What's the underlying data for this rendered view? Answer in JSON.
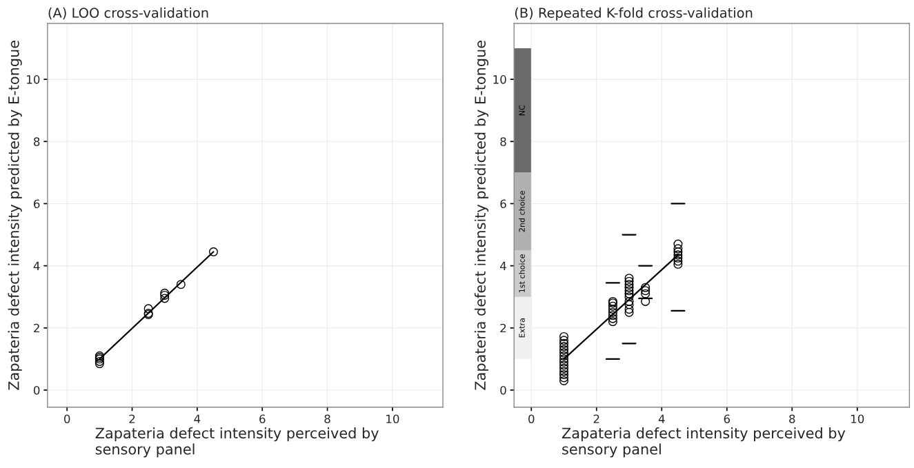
{
  "chart_data": [
    {
      "type": "scatter",
      "title": "(A) LOO cross-validation",
      "xlabel": "Zapateria defect intensity perceived by\nsensory panel",
      "ylabel": "Zapateria defect intensity predicted by E-tongue",
      "xlim": [
        -0.6,
        11.55
      ],
      "ylim": [
        -0.55,
        11.8
      ],
      "xticks": [
        0,
        2,
        4,
        6,
        8,
        10
      ],
      "yticks": [
        0,
        2,
        4,
        6,
        8,
        10
      ],
      "grid": true,
      "series": [
        {
          "marker": "circle",
          "color": "#000000",
          "x": [
            1,
            1,
            1,
            1,
            1,
            2.5,
            2.5,
            2.5,
            3,
            3,
            3,
            3.5,
            4.5
          ],
          "values": [
            0.85,
            0.92,
            1.0,
            1.05,
            1.1,
            2.43,
            2.47,
            2.62,
            2.95,
            3.05,
            3.12,
            3.4,
            4.45
          ]
        },
        {
          "type": "line",
          "color": "#000000",
          "x": [
            1,
            4.5
          ],
          "values": [
            1.0,
            4.45
          ]
        }
      ]
    },
    {
      "type": "scatter",
      "title": "(B) Repeated K-fold cross-validation",
      "xlabel": "Zapateria defect intensity perceived by\nsensory panel",
      "ylabel": "Zapateria defect intensity predicted by E-tongue",
      "xlim": [
        -0.53,
        11.6
      ],
      "ylim": [
        -0.55,
        11.8
      ],
      "xticks": [
        0,
        2,
        4,
        6,
        8,
        10
      ],
      "yticks": [
        0,
        2,
        4,
        6,
        8,
        10
      ],
      "grid": true,
      "bands": [
        {
          "axis": "y",
          "from": 1,
          "to": 3,
          "label": "Extra",
          "color": "#f0f0f0"
        },
        {
          "axis": "y",
          "from": 3,
          "to": 4.5,
          "label": "1st choice",
          "color": "#cccccc"
        },
        {
          "axis": "y",
          "from": 4.5,
          "to": 7,
          "label": "2nd choice",
          "color": "#b0b0b0"
        },
        {
          "axis": "y",
          "from": 7,
          "to": 11,
          "label": "NC",
          "color": "#6b6b6b"
        }
      ],
      "series": [
        {
          "marker": "circle",
          "color": "#000000",
          "x": [
            1,
            1,
            1,
            1,
            1,
            1,
            1,
            1,
            1,
            1,
            1,
            1,
            1,
            1,
            1,
            2.5,
            2.5,
            2.5,
            2.5,
            2.5,
            2.5,
            2.5,
            2.5,
            3,
            3,
            3,
            3,
            3,
            3,
            3,
            3,
            3,
            3,
            3,
            3.5,
            3.5,
            3.5,
            3.5,
            4.5,
            4.5,
            4.5,
            4.5,
            4.5,
            4.5,
            4.5
          ],
          "values": [
            0.3,
            0.4,
            0.5,
            0.6,
            0.7,
            0.8,
            0.9,
            1.0,
            1.1,
            1.2,
            1.3,
            1.4,
            1.5,
            1.6,
            1.72,
            2.2,
            2.3,
            2.4,
            2.5,
            2.6,
            2.7,
            2.8,
            2.85,
            2.5,
            2.6,
            2.75,
            2.85,
            3.0,
            3.1,
            3.2,
            3.3,
            3.4,
            3.5,
            3.6,
            2.85,
            3.1,
            3.2,
            3.3,
            4.05,
            4.15,
            4.25,
            4.35,
            4.45,
            4.55,
            4.7
          ]
        },
        {
          "type": "line",
          "color": "#000000",
          "x": [
            2.3,
            2.7
          ],
          "values": [
            3.45,
            3.45
          ]
        },
        {
          "type": "line",
          "color": "#000000",
          "x": [
            2.3,
            2.7
          ],
          "values": [
            1.0,
            1.0
          ]
        },
        {
          "type": "line",
          "color": "#000000",
          "x": [
            2.8,
            3.2
          ],
          "values": [
            5.0,
            5.0
          ]
        },
        {
          "type": "line",
          "color": "#000000",
          "x": [
            2.8,
            3.2
          ],
          "values": [
            1.5,
            1.5
          ]
        },
        {
          "type": "line",
          "color": "#000000",
          "x": [
            3.3,
            3.7
          ],
          "values": [
            4.0,
            4.0
          ]
        },
        {
          "type": "line",
          "color": "#000000",
          "x": [
            3.3,
            3.7
          ],
          "values": [
            2.95,
            2.95
          ]
        },
        {
          "type": "line",
          "color": "#000000",
          "x": [
            4.3,
            4.7
          ],
          "values": [
            6.0,
            6.0
          ]
        },
        {
          "type": "line",
          "color": "#000000",
          "x": [
            4.3,
            4.7
          ],
          "values": [
            2.55,
            2.55
          ]
        },
        {
          "type": "line",
          "color": "#000000",
          "x": [
            1,
            4.5
          ],
          "values": [
            1.0,
            4.35
          ]
        }
      ]
    }
  ]
}
